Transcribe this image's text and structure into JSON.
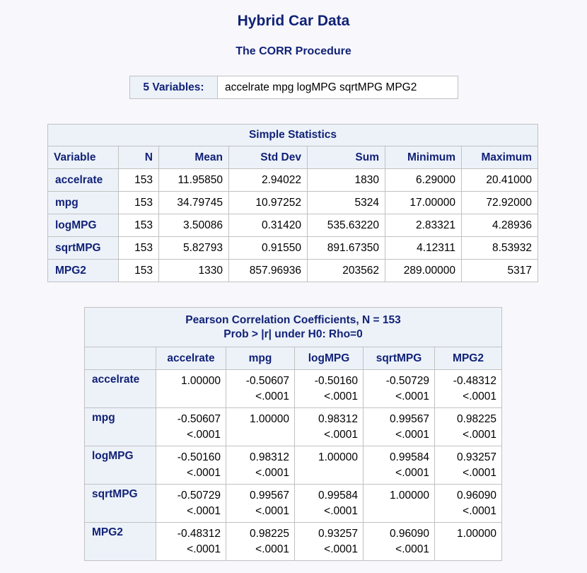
{
  "title": "Hybrid Car Data",
  "procedure": "The CORR Procedure",
  "variables": {
    "label": "5 Variables:",
    "value": "accelrate mpg logMPG sqrtMPG MPG2"
  },
  "simple_stats": {
    "caption": "Simple Statistics",
    "headers": [
      "Variable",
      "N",
      "Mean",
      "Std Dev",
      "Sum",
      "Minimum",
      "Maximum"
    ],
    "rows": [
      {
        "name": "accelrate",
        "cells": [
          "153",
          "11.95850",
          "2.94022",
          "1830",
          "6.29000",
          "20.41000"
        ]
      },
      {
        "name": "mpg",
        "cells": [
          "153",
          "34.79745",
          "10.97252",
          "5324",
          "17.00000",
          "72.92000"
        ]
      },
      {
        "name": "logMPG",
        "cells": [
          "153",
          "3.50086",
          "0.31420",
          "535.63220",
          "2.83321",
          "4.28936"
        ]
      },
      {
        "name": "sqrtMPG",
        "cells": [
          "153",
          "5.82793",
          "0.91550",
          "891.67350",
          "4.12311",
          "8.53932"
        ]
      },
      {
        "name": "MPG2",
        "cells": [
          "153",
          "1330",
          "857.96936",
          "203562",
          "289.00000",
          "5317"
        ]
      }
    ]
  },
  "correlation": {
    "caption_line1": "Pearson Correlation Coefficients, N = 153",
    "caption_line2": "Prob > |r| under H0: Rho=0",
    "headers": [
      "accelrate",
      "mpg",
      "logMPG",
      "sqrtMPG",
      "MPG2"
    ],
    "rows": [
      {
        "name": "accelrate",
        "cells": [
          {
            "r": "1.00000",
            "p": ""
          },
          {
            "r": "-0.50607",
            "p": "<.0001"
          },
          {
            "r": "-0.50160",
            "p": "<.0001"
          },
          {
            "r": "-0.50729",
            "p": "<.0001"
          },
          {
            "r": "-0.48312",
            "p": "<.0001"
          }
        ]
      },
      {
        "name": "mpg",
        "cells": [
          {
            "r": "-0.50607",
            "p": "<.0001"
          },
          {
            "r": "1.00000",
            "p": ""
          },
          {
            "r": "0.98312",
            "p": "<.0001"
          },
          {
            "r": "0.99567",
            "p": "<.0001"
          },
          {
            "r": "0.98225",
            "p": "<.0001"
          }
        ]
      },
      {
        "name": "logMPG",
        "cells": [
          {
            "r": "-0.50160",
            "p": "<.0001"
          },
          {
            "r": "0.98312",
            "p": "<.0001"
          },
          {
            "r": "1.00000",
            "p": ""
          },
          {
            "r": "0.99584",
            "p": "<.0001"
          },
          {
            "r": "0.93257",
            "p": "<.0001"
          }
        ]
      },
      {
        "name": "sqrtMPG",
        "cells": [
          {
            "r": "-0.50729",
            "p": "<.0001"
          },
          {
            "r": "0.99567",
            "p": "<.0001"
          },
          {
            "r": "0.99584",
            "p": "<.0001"
          },
          {
            "r": "1.00000",
            "p": ""
          },
          {
            "r": "0.96090",
            "p": "<.0001"
          }
        ]
      },
      {
        "name": "MPG2",
        "cells": [
          {
            "r": "-0.48312",
            "p": "<.0001"
          },
          {
            "r": "0.98225",
            "p": "<.0001"
          },
          {
            "r": "0.93257",
            "p": "<.0001"
          },
          {
            "r": "0.96090",
            "p": "<.0001"
          },
          {
            "r": "1.00000",
            "p": ""
          }
        ]
      }
    ]
  }
}
